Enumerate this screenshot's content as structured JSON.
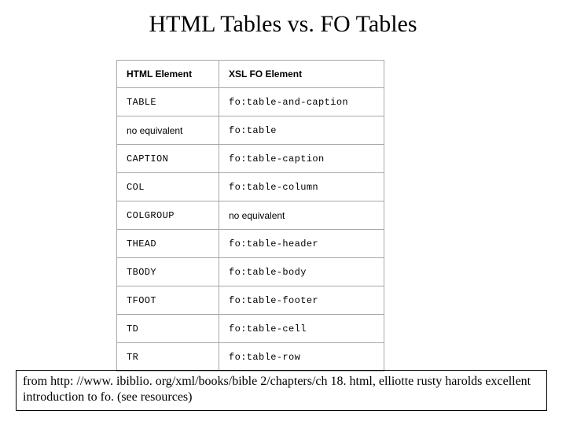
{
  "title": "HTML Tables vs. FO Tables",
  "table": {
    "headers": {
      "left": "HTML Element",
      "right": "XSL FO Element"
    },
    "rows": [
      {
        "left": "TABLE",
        "right": "fo:table-and-caption",
        "leftMono": true,
        "rightMono": true
      },
      {
        "left": "no equivalent",
        "right": "fo:table",
        "leftMono": false,
        "rightMono": true
      },
      {
        "left": "CAPTION",
        "right": "fo:table-caption",
        "leftMono": true,
        "rightMono": true
      },
      {
        "left": "COL",
        "right": "fo:table-column",
        "leftMono": true,
        "rightMono": true
      },
      {
        "left": "COLGROUP",
        "right": "no equivalent",
        "leftMono": true,
        "rightMono": false
      },
      {
        "left": "THEAD",
        "right": "fo:table-header",
        "leftMono": true,
        "rightMono": true
      },
      {
        "left": "TBODY",
        "right": "fo:table-body",
        "leftMono": true,
        "rightMono": true
      },
      {
        "left": "TFOOT",
        "right": "fo:table-footer",
        "leftMono": true,
        "rightMono": true
      },
      {
        "left": "TD",
        "right": "fo:table-cell",
        "leftMono": true,
        "rightMono": true
      },
      {
        "left": "TR",
        "right": "fo:table-row",
        "leftMono": true,
        "rightMono": true
      }
    ]
  },
  "footnote": "from http: //www. ibiblio. org/xml/books/bible 2/chapters/ch 18. html, elliotte rusty harolds excellent introduction to fo. (see resources)"
}
